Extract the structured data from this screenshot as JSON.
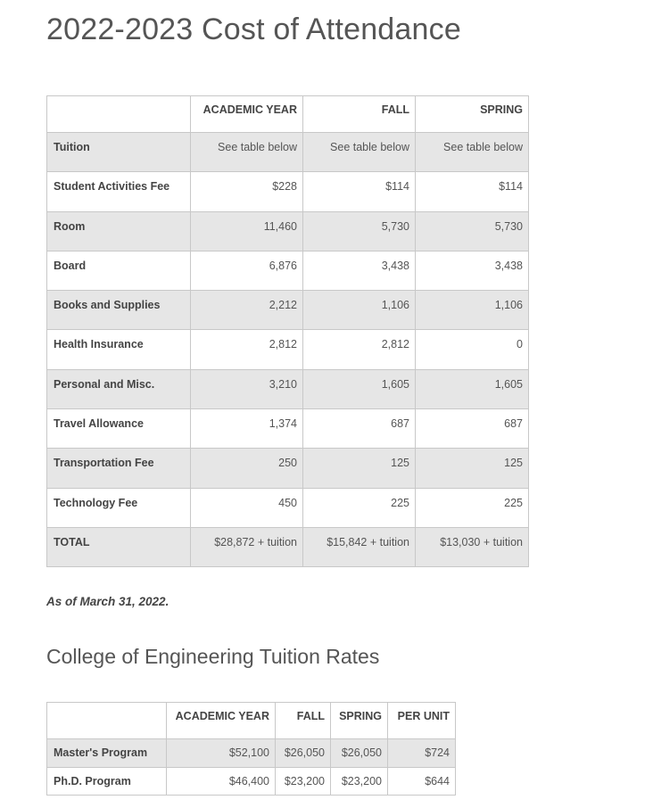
{
  "title": "2022-2023 Cost of Attendance",
  "cost_table": {
    "headers": [
      "ACADEMIC YEAR",
      "FALL",
      "SPRING"
    ],
    "rows": [
      [
        "Tuition",
        "See table below",
        "See table below",
        "See table below"
      ],
      [
        "Student Activities Fee",
        "$228",
        "$114",
        "$114"
      ],
      [
        "Room",
        "11,460",
        "5,730",
        "5,730"
      ],
      [
        "Board",
        "6,876",
        "3,438",
        "3,438"
      ],
      [
        "Books and Supplies",
        "2,212",
        "1,106",
        "1,106"
      ],
      [
        "Health Insurance",
        "2,812",
        "2,812",
        "0"
      ],
      [
        "Personal and Misc.",
        "3,210",
        "1,605",
        "1,605"
      ],
      [
        "Travel Allowance",
        "1,374",
        "687",
        "687"
      ],
      [
        "Transportation Fee",
        "250",
        "125",
        "125"
      ],
      [
        "Technology Fee",
        "450",
        "225",
        "225"
      ],
      [
        "TOTAL",
        "$28,872 + tuition",
        "$15,842 + tuition",
        "$13,030 + tuition"
      ]
    ]
  },
  "note": "As of March 31, 2022.",
  "subtitle": "College of Engineering Tuition Rates",
  "tuition_table": {
    "headers": [
      "ACADEMIC YEAR",
      "FALL",
      "SPRING",
      "PER UNIT"
    ],
    "rows": [
      [
        "Master's Program",
        "$52,100",
        "$26,050",
        "$26,050",
        "$724"
      ],
      [
        "Ph.D. Program",
        "$46,400",
        "$23,200",
        "$23,200",
        "$644"
      ]
    ]
  }
}
